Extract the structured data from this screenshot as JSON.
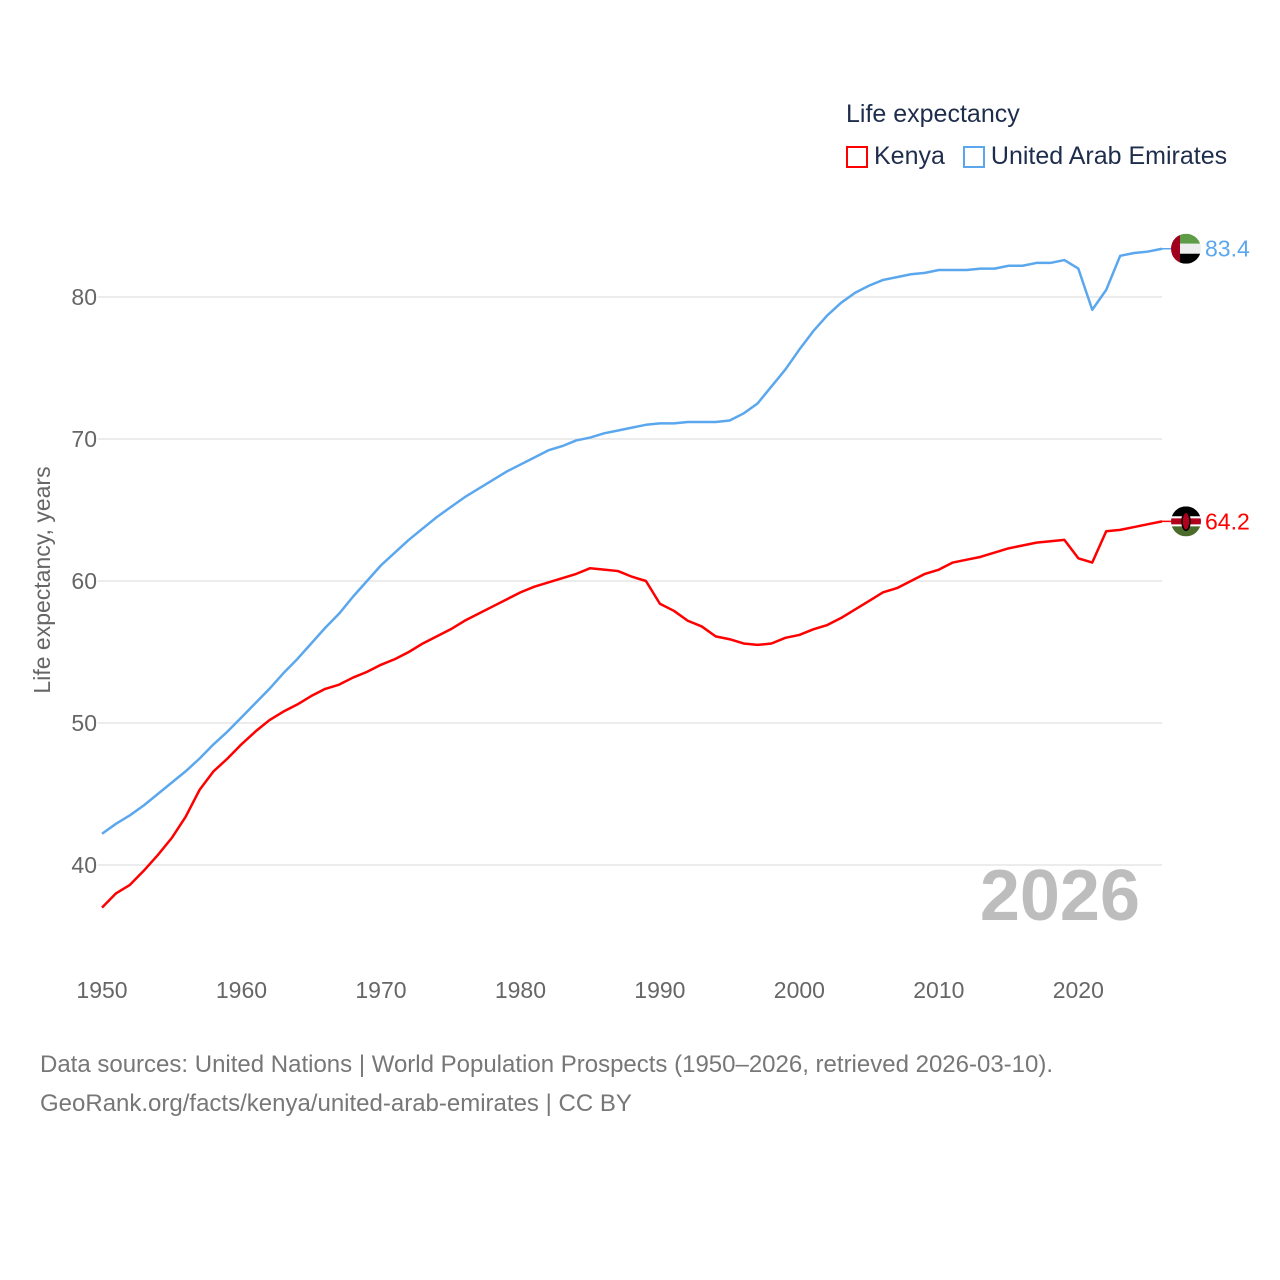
{
  "chart_data": {
    "type": "line",
    "title": "Life expectancy",
    "xlabel": "",
    "ylabel": "Life expectancy, years",
    "xlim": [
      1950,
      2026
    ],
    "ylim": [
      35,
      86
    ],
    "x_ticks": [
      "1950",
      "1960",
      "1970",
      "1980",
      "1990",
      "2000",
      "2010",
      "2020"
    ],
    "y_ticks": [
      "40",
      "50",
      "60",
      "70",
      "80"
    ],
    "grid": true,
    "legend_placement": "top-right",
    "year_label": "2026",
    "x": [
      1950,
      1951,
      1952,
      1953,
      1954,
      1955,
      1956,
      1957,
      1958,
      1959,
      1960,
      1961,
      1962,
      1963,
      1964,
      1965,
      1966,
      1967,
      1968,
      1969,
      1970,
      1971,
      1972,
      1973,
      1974,
      1975,
      1976,
      1977,
      1978,
      1979,
      1980,
      1981,
      1982,
      1983,
      1984,
      1985,
      1986,
      1987,
      1988,
      1989,
      1990,
      1991,
      1992,
      1993,
      1994,
      1995,
      1996,
      1997,
      1998,
      1999,
      2000,
      2001,
      2002,
      2003,
      2004,
      2005,
      2006,
      2007,
      2008,
      2009,
      2010,
      2011,
      2012,
      2013,
      2014,
      2015,
      2016,
      2017,
      2018,
      2019,
      2020,
      2021,
      2022,
      2023,
      2024,
      2025,
      2026
    ],
    "series": [
      {
        "name": "Kenya",
        "color": "#ff0000",
        "end_label": "64.2",
        "values": [
          37.0,
          38.0,
          38.6,
          39.6,
          40.7,
          41.9,
          43.4,
          45.3,
          46.6,
          47.5,
          48.5,
          49.4,
          50.2,
          50.8,
          51.3,
          51.9,
          52.4,
          52.7,
          53.2,
          53.6,
          54.1,
          54.5,
          55.0,
          55.6,
          56.1,
          56.6,
          57.2,
          57.7,
          58.2,
          58.7,
          59.2,
          59.6,
          59.9,
          60.2,
          60.5,
          60.9,
          60.8,
          60.7,
          60.3,
          60.0,
          58.4,
          57.9,
          57.2,
          56.8,
          56.1,
          55.9,
          55.6,
          55.5,
          55.6,
          56.0,
          56.2,
          56.6,
          56.9,
          57.4,
          58.0,
          58.6,
          59.2,
          59.5,
          60.0,
          60.5,
          60.8,
          61.3,
          61.5,
          61.7,
          62.0,
          62.3,
          62.5,
          62.7,
          62.8,
          62.9,
          61.6,
          61.3,
          63.5,
          63.6,
          63.8,
          64.0,
          64.2
        ]
      },
      {
        "name": "United Arab Emirates",
        "color": "#5ba7ee",
        "end_label": "83.4",
        "values": [
          42.2,
          42.9,
          43.5,
          44.2,
          45.0,
          45.8,
          46.6,
          47.5,
          48.5,
          49.4,
          50.4,
          51.4,
          52.4,
          53.5,
          54.5,
          55.6,
          56.7,
          57.7,
          58.9,
          60.0,
          61.1,
          62.0,
          62.9,
          63.7,
          64.5,
          65.2,
          65.9,
          66.5,
          67.1,
          67.7,
          68.2,
          68.7,
          69.2,
          69.5,
          69.9,
          70.1,
          70.4,
          70.6,
          70.8,
          71.0,
          71.1,
          71.1,
          71.2,
          71.2,
          71.2,
          71.3,
          71.8,
          72.5,
          73.7,
          74.9,
          76.3,
          77.6,
          78.7,
          79.6,
          80.3,
          80.8,
          81.2,
          81.4,
          81.6,
          81.7,
          81.9,
          81.9,
          81.9,
          82.0,
          82.0,
          82.2,
          82.2,
          82.4,
          82.4,
          82.6,
          82.0,
          79.1,
          80.5,
          82.9,
          83.1,
          83.2,
          83.4
        ]
      }
    ]
  },
  "footer": {
    "line1": "Data sources: United Nations | World Population Prospects (1950–2026, retrieved 2026-03-10).",
    "line2": "GeoRank.org/facts/kenya/united-arab-emirates | CC BY"
  }
}
